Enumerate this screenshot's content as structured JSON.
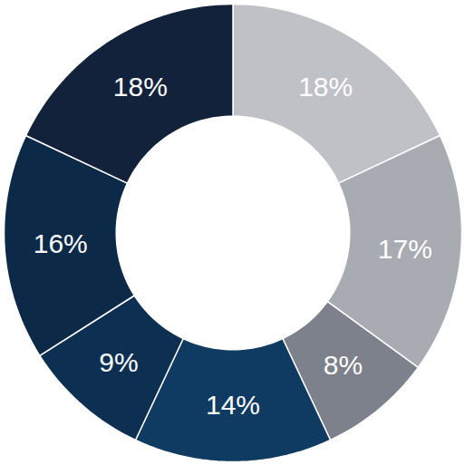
{
  "chart_data": {
    "type": "donut",
    "values": [
      18,
      17,
      8,
      14,
      9,
      16,
      18
    ],
    "value_labels": [
      "18%",
      "17%",
      "8%",
      "14%",
      "9%",
      "16%",
      "18%"
    ],
    "colors": [
      "#bfc1c7",
      "#a8abb2",
      "#7c818b",
      "#0f3a62",
      "#0d3052",
      "#0c2a47",
      "#13223b"
    ],
    "data_labels": true
  }
}
